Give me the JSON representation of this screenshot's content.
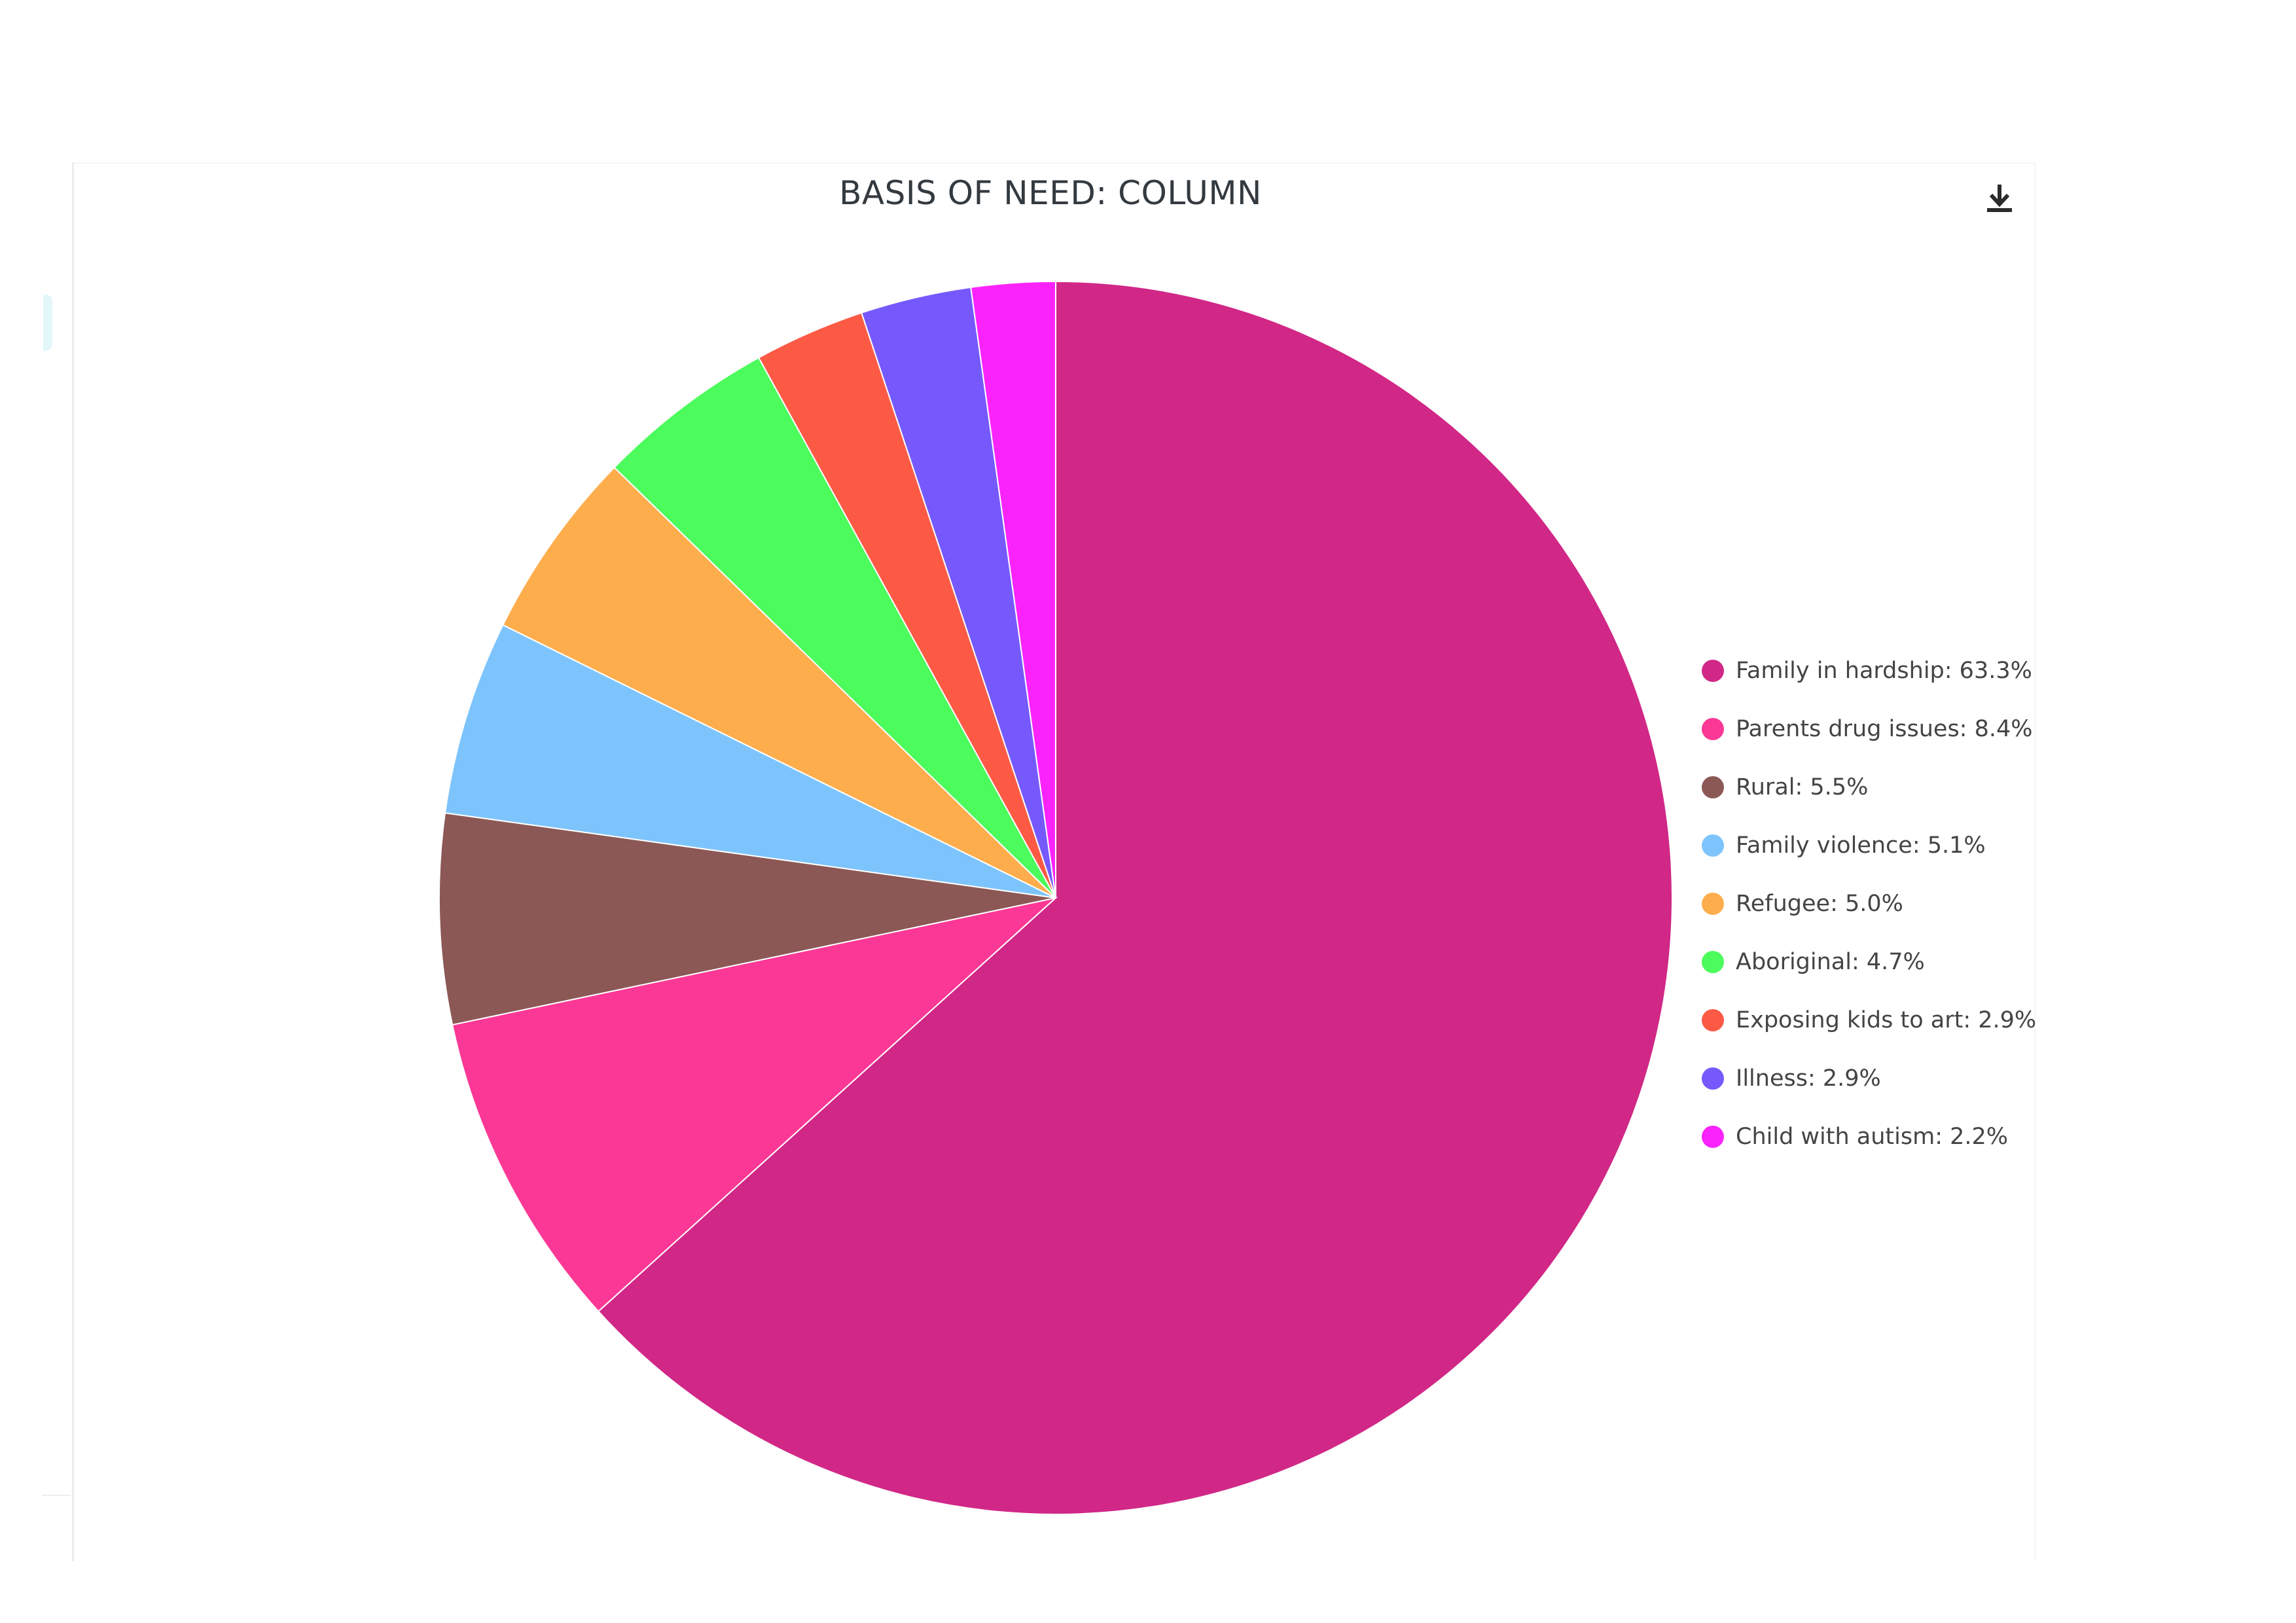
{
  "chart_data": {
    "type": "pie",
    "title": "BASIS OF NEED: COLUMN",
    "slices": [
      {
        "label": "Family in hardship",
        "value": 63.3,
        "display": "63.3%",
        "color": "#d12787"
      },
      {
        "label": "Parents drug issues",
        "value": 8.4,
        "display": "8.4%",
        "color": "#fb3895"
      },
      {
        "label": "Rural",
        "value": 5.5,
        "display": "5.5%",
        "color": "#8b5856"
      },
      {
        "label": "Family violence",
        "value": 5.1,
        "display": "5.1%",
        "color": "#7ec4fc"
      },
      {
        "label": "Refugee",
        "value": 5.0,
        "display": "5.0%",
        "color": "#fdad4c"
      },
      {
        "label": "Aboriginal",
        "value": 4.7,
        "display": "4.7%",
        "color": "#4cfc5c"
      },
      {
        "label": "Exposing kids to art",
        "value": 2.9,
        "display": "2.9%",
        "color": "#fd5a45"
      },
      {
        "label": "Illness",
        "value": 2.9,
        "display": "2.9%",
        "color": "#7659fd"
      },
      {
        "label": "Child with autism",
        "value": 2.2,
        "display": "2.2%",
        "color": "#fb23fc"
      }
    ],
    "legend_position": "right"
  },
  "toolbar": {
    "download_icon": "download-icon"
  }
}
